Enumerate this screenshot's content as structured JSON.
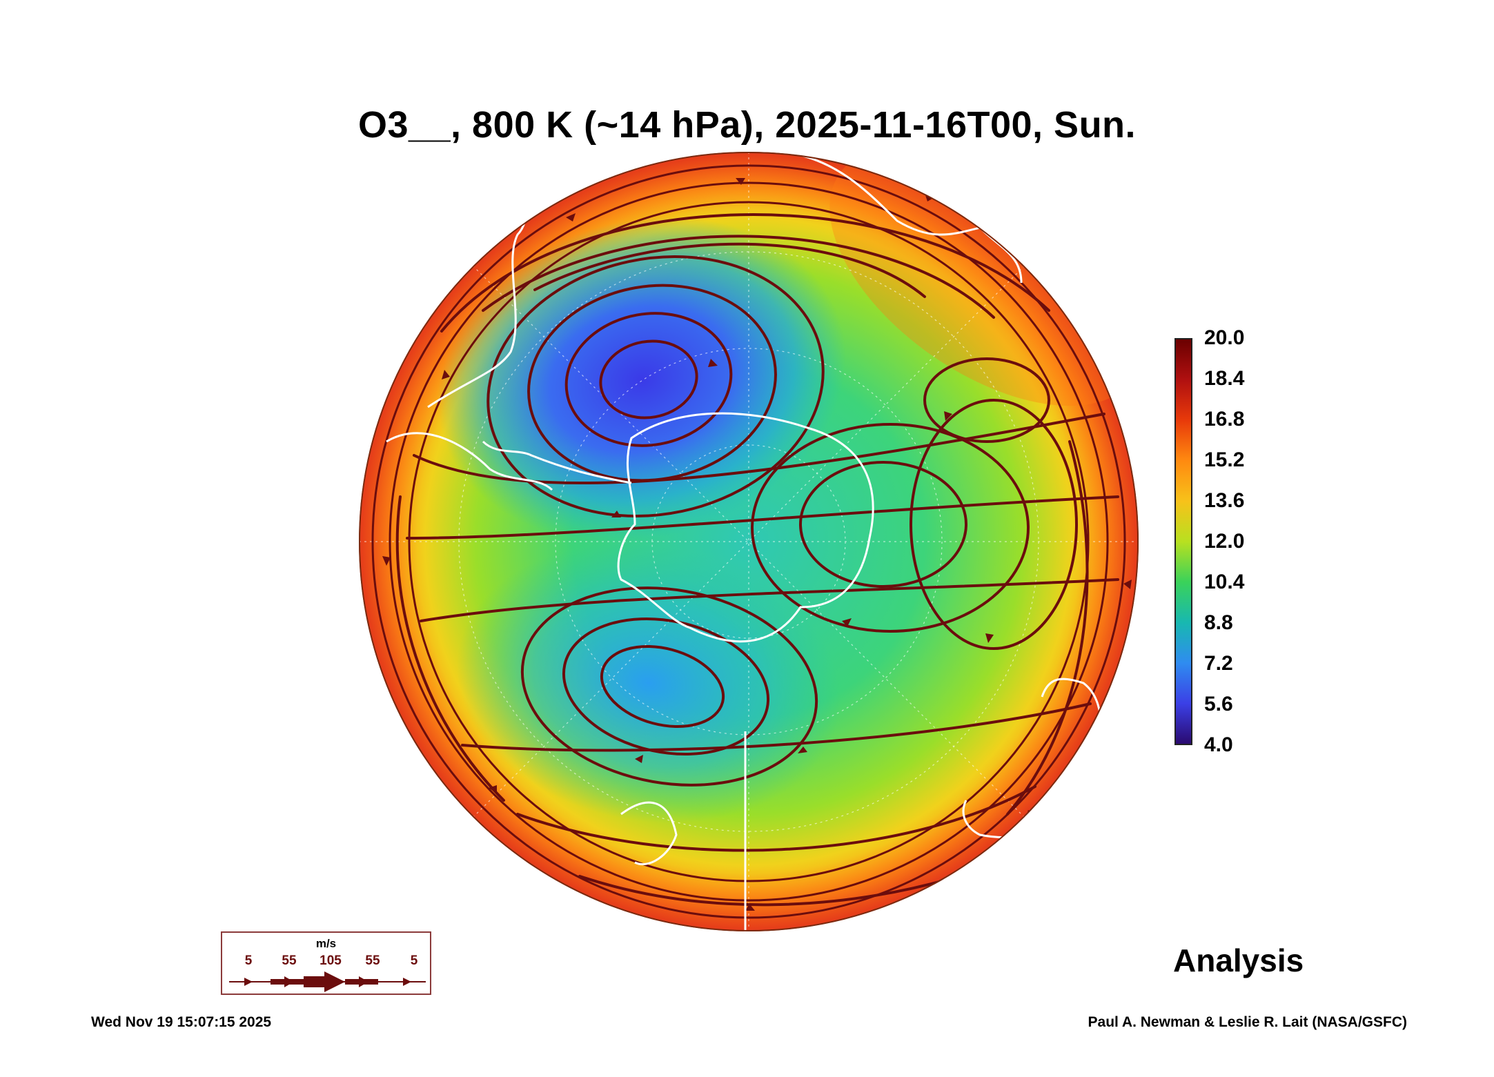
{
  "title": "O3__, 800 K (~14 hPa), 2025-11-16T00, Sun.",
  "map": {
    "projection": "south-polar-orthographic",
    "field": "O3__",
    "overlay": "wind streamlines",
    "coastline_color": "#ffffff",
    "streamline_color": "#6b0d0d",
    "grid": "dotted lat-lon",
    "features": [
      "low ozone center over Weddell Sea / South America sector",
      "secondary low ozone cell in Indian Ocean sector",
      "high ozone ring at mid-latitudes"
    ]
  },
  "colorbar": {
    "min": 4.0,
    "max": 20.0,
    "labels": [
      "20.0",
      "18.4",
      "16.8",
      "15.2",
      "13.6",
      "12.0",
      "10.4",
      "8.8",
      "7.2",
      "5.6",
      "4.0"
    ],
    "colors": [
      "#6b0000",
      "#b01010",
      "#e83a0a",
      "#ff8a10",
      "#f7c21a",
      "#b8e020",
      "#3ad25a",
      "#18b8b0",
      "#2f8cf0",
      "#3b40e6",
      "#2a0a70"
    ]
  },
  "wind_scale": {
    "unit": "m/s",
    "ticks": [
      "5",
      "55",
      "105",
      "55",
      "5"
    ]
  },
  "analysis_label": "Analysis",
  "timestamp": "Wed Nov 19 15:07:15 2025",
  "credit": "Paul A. Newman & Leslie R. Lait (NASA/GSFC)"
}
